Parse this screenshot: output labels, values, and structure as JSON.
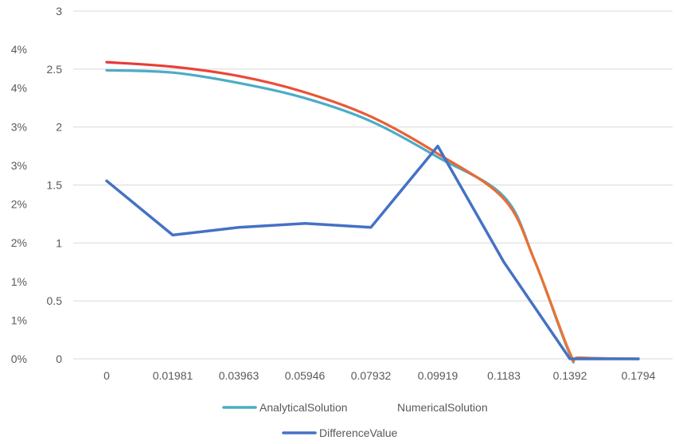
{
  "chart_data": {
    "type": "line",
    "title": "",
    "xlabel": "",
    "ylabel": "",
    "categories": [
      "0",
      "0.01981",
      "0.03963",
      "0.05946",
      "0.07932",
      "0.09919",
      "0.1183",
      "0.1392",
      "0.1794"
    ],
    "primary_axis": {
      "ylim": [
        0,
        3
      ],
      "ticks": [
        "0",
        "0.5",
        "1",
        "1.5",
        "2",
        "2.5",
        "3"
      ]
    },
    "secondary_axis": {
      "position": "left",
      "ticks": [
        "0%",
        "1%",
        "1%",
        "2%",
        "2%",
        "3%",
        "3%",
        "4%",
        "4%"
      ]
    },
    "grid": true,
    "legend_position": "bottom",
    "series": [
      {
        "name": "AnalyticalSolution",
        "color": "#4BACC6",
        "axis": "primary",
        "points": [
          [
            0,
            2.49
          ],
          [
            0.01981,
            2.47
          ],
          [
            0.03963,
            2.38
          ],
          [
            0.05946,
            2.25
          ],
          [
            0.07932,
            2.05
          ],
          [
            0.09919,
            1.74
          ],
          [
            0.1183,
            1.4
          ],
          [
            0.128,
            0.85
          ],
          [
            0.1392,
            0.04
          ],
          [
            0.145,
            0.01
          ],
          [
            0.1794,
            0.0
          ]
        ]
      },
      {
        "name": "NumericalSolution",
        "color": "#ED7D31",
        "accent_color": "#E8383A",
        "axis": "primary",
        "points": [
          [
            0,
            2.56
          ],
          [
            0.01981,
            2.52
          ],
          [
            0.03963,
            2.44
          ],
          [
            0.05946,
            2.3
          ],
          [
            0.07932,
            2.09
          ],
          [
            0.09919,
            1.77
          ],
          [
            0.1183,
            1.38
          ],
          [
            0.128,
            0.85
          ],
          [
            0.1392,
            0.05
          ],
          [
            0.145,
            0.01
          ],
          [
            0.1794,
            0.0
          ]
        ]
      },
      {
        "name": "DifferenceValue",
        "color": "#4472C4",
        "axis": "secondary",
        "values_percent": [
          2.3,
          1.6,
          1.7,
          1.75,
          1.7,
          2.75,
          1.25,
          0.0,
          0.0
        ]
      }
    ]
  }
}
